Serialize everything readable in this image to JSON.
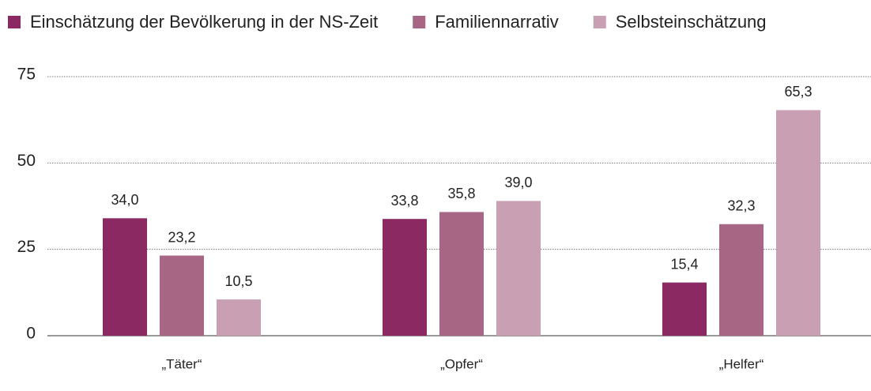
{
  "chart_data": {
    "type": "bar",
    "categories": [
      "„Täter“",
      "„Opfer“",
      "„Helfer“"
    ],
    "series": [
      {
        "name": "Einschätzung der Bevölkerung in der NS-Zeit",
        "color": "#8b2a62",
        "values": [
          34.0,
          33.8,
          15.4
        ],
        "value_labels": [
          "34,0",
          "33,8",
          "15,4"
        ]
      },
      {
        "name": "Familiennarrativ",
        "color": "#a66684",
        "values": [
          23.2,
          35.8,
          32.3
        ],
        "value_labels": [
          "23,2",
          "35,8",
          "32,3"
        ]
      },
      {
        "name": "Selbsteinschätzung",
        "color": "#c89fb3",
        "values": [
          10.5,
          39.0,
          65.3
        ],
        "value_labels": [
          "10,5",
          "39,0",
          "65,3"
        ]
      }
    ],
    "ylim": [
      0,
      75
    ],
    "yticks": [
      0,
      25,
      50,
      75
    ],
    "grid": true,
    "legend": "top"
  }
}
